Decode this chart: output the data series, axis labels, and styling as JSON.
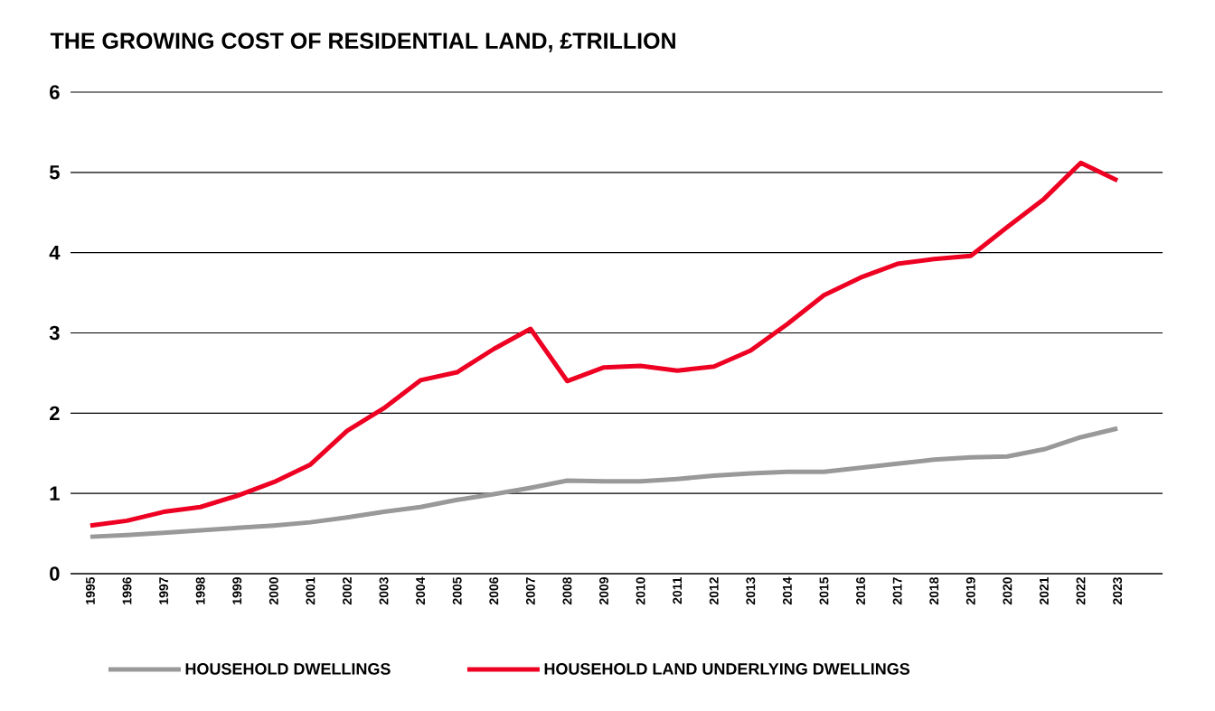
{
  "chart_data": {
    "type": "line",
    "title": "THE GROWING COST OF RESIDENTIAL LAND, £TRILLION",
    "categories": [
      "1995",
      "1996",
      "1997",
      "1998",
      "1999",
      "2000",
      "2001",
      "2002",
      "2003",
      "2004",
      "2005",
      "2006",
      "2007",
      "2008",
      "2009",
      "2010",
      "2011",
      "2012",
      "2013",
      "2014",
      "2015",
      "2016",
      "2017",
      "2018",
      "2019",
      "2020",
      "2021",
      "2022",
      "2023"
    ],
    "series": [
      {
        "name": "HOUSEHOLD DWELLINGS",
        "color": "#999999",
        "values": [
          0.46,
          0.48,
          0.51,
          0.54,
          0.57,
          0.6,
          0.64,
          0.7,
          0.77,
          0.83,
          0.92,
          0.99,
          1.07,
          1.16,
          1.15,
          1.15,
          1.18,
          1.22,
          1.25,
          1.27,
          1.27,
          1.32,
          1.37,
          1.42,
          1.45,
          1.46,
          1.55,
          1.7,
          1.81
        ]
      },
      {
        "name": "HOUSEHOLD LAND UNDERLYING DWELLINGS",
        "color": "#ee0022",
        "values": [
          0.6,
          0.66,
          0.77,
          0.83,
          0.97,
          1.14,
          1.36,
          1.78,
          2.06,
          2.41,
          2.51,
          2.8,
          3.05,
          2.4,
          2.57,
          2.59,
          2.53,
          2.58,
          2.78,
          3.11,
          3.47,
          3.69,
          3.86,
          3.92,
          3.96,
          4.32,
          4.67,
          5.12,
          4.9
        ]
      }
    ],
    "ylim": [
      0,
      6
    ],
    "yticks": [
      0,
      1,
      2,
      3,
      4,
      5,
      6
    ],
    "grid": "y",
    "legend": "bottom",
    "marker": "none",
    "line_style": "solid"
  }
}
